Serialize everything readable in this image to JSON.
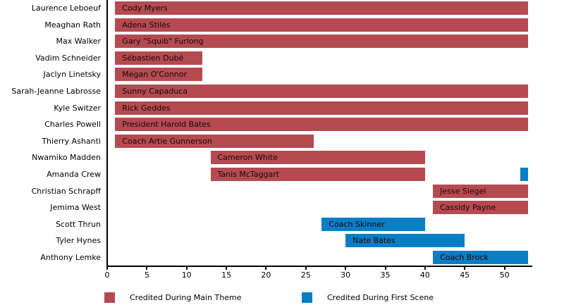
{
  "chart_data": {
    "type": "bar",
    "orientation": "horizontal",
    "title": "",
    "xlabel": "",
    "ylabel": "",
    "xlim": [
      0,
      53.5
    ],
    "xticks": [
      0,
      5,
      10,
      15,
      20,
      25,
      30,
      35,
      40,
      45,
      50
    ],
    "grid": false,
    "legend_position": "bottom",
    "colors": {
      "main_theme": "#b54a51",
      "first_scene": "#0b7dc4"
    },
    "legend": [
      {
        "key": "main_theme",
        "label": "Credited During Main Theme",
        "color": "#b54a51"
      },
      {
        "key": "first_scene",
        "label": "Credited During First Scene",
        "color": "#0b7dc4"
      }
    ],
    "rows": [
      {
        "actor": "Laurence Leboeuf",
        "character": "Cody Myers",
        "segments": [
          {
            "start": 1,
            "end": 53,
            "type": "main_theme"
          }
        ]
      },
      {
        "actor": "Meaghan Rath",
        "character": "Adena Stiles",
        "segments": [
          {
            "start": 1,
            "end": 53,
            "type": "main_theme"
          }
        ]
      },
      {
        "actor": "Max Walker",
        "character": "Gary \"Squib\" Furlong",
        "segments": [
          {
            "start": 1,
            "end": 53,
            "type": "main_theme"
          }
        ]
      },
      {
        "actor": "Vadim Schneider",
        "character": "Sébastien Dubé",
        "segments": [
          {
            "start": 1,
            "end": 12,
            "type": "main_theme"
          }
        ]
      },
      {
        "actor": "Jaclyn Linetsky",
        "character": "Megan O'Connor",
        "segments": [
          {
            "start": 1,
            "end": 12,
            "type": "main_theme"
          }
        ]
      },
      {
        "actor": "Sarah-Jeanne Labrosse",
        "character": "Sunny Capaduca",
        "segments": [
          {
            "start": 1,
            "end": 53,
            "type": "main_theme"
          }
        ]
      },
      {
        "actor": "Kyle Switzer",
        "character": "Rick Geddes",
        "segments": [
          {
            "start": 1,
            "end": 53,
            "type": "main_theme"
          }
        ]
      },
      {
        "actor": "Charles Powell",
        "character": "President Harold Bates",
        "segments": [
          {
            "start": 1,
            "end": 53,
            "type": "main_theme"
          }
        ]
      },
      {
        "actor": "Thierry Ashanti",
        "character": "Coach Artie Gunnerson",
        "segments": [
          {
            "start": 1,
            "end": 26,
            "type": "main_theme"
          }
        ]
      },
      {
        "actor": "Nwamiko Madden",
        "character": "Cameron White",
        "segments": [
          {
            "start": 13,
            "end": 40,
            "type": "main_theme"
          }
        ]
      },
      {
        "actor": "Amanda Crew",
        "character": "Tanis McTaggart",
        "segments": [
          {
            "start": 13,
            "end": 40,
            "type": "main_theme"
          },
          {
            "start": 52,
            "end": 53,
            "type": "first_scene"
          }
        ]
      },
      {
        "actor": "Christian Schrapff",
        "character": "Jesse Siegel",
        "segments": [
          {
            "start": 41,
            "end": 53,
            "type": "main_theme"
          }
        ]
      },
      {
        "actor": "Jemima West",
        "character": "Cassidy Payne",
        "segments": [
          {
            "start": 41,
            "end": 53,
            "type": "main_theme"
          }
        ]
      },
      {
        "actor": "Scott Thrun",
        "character": "Coach Skinner",
        "segments": [
          {
            "start": 27,
            "end": 40,
            "type": "first_scene"
          }
        ]
      },
      {
        "actor": "Tyler Hynes",
        "character": "Nate Bates",
        "segments": [
          {
            "start": 30,
            "end": 45,
            "type": "first_scene"
          }
        ]
      },
      {
        "actor": "Anthony Lemke",
        "character": "Coach Brock",
        "segments": [
          {
            "start": 41,
            "end": 53,
            "type": "first_scene"
          }
        ]
      }
    ]
  }
}
